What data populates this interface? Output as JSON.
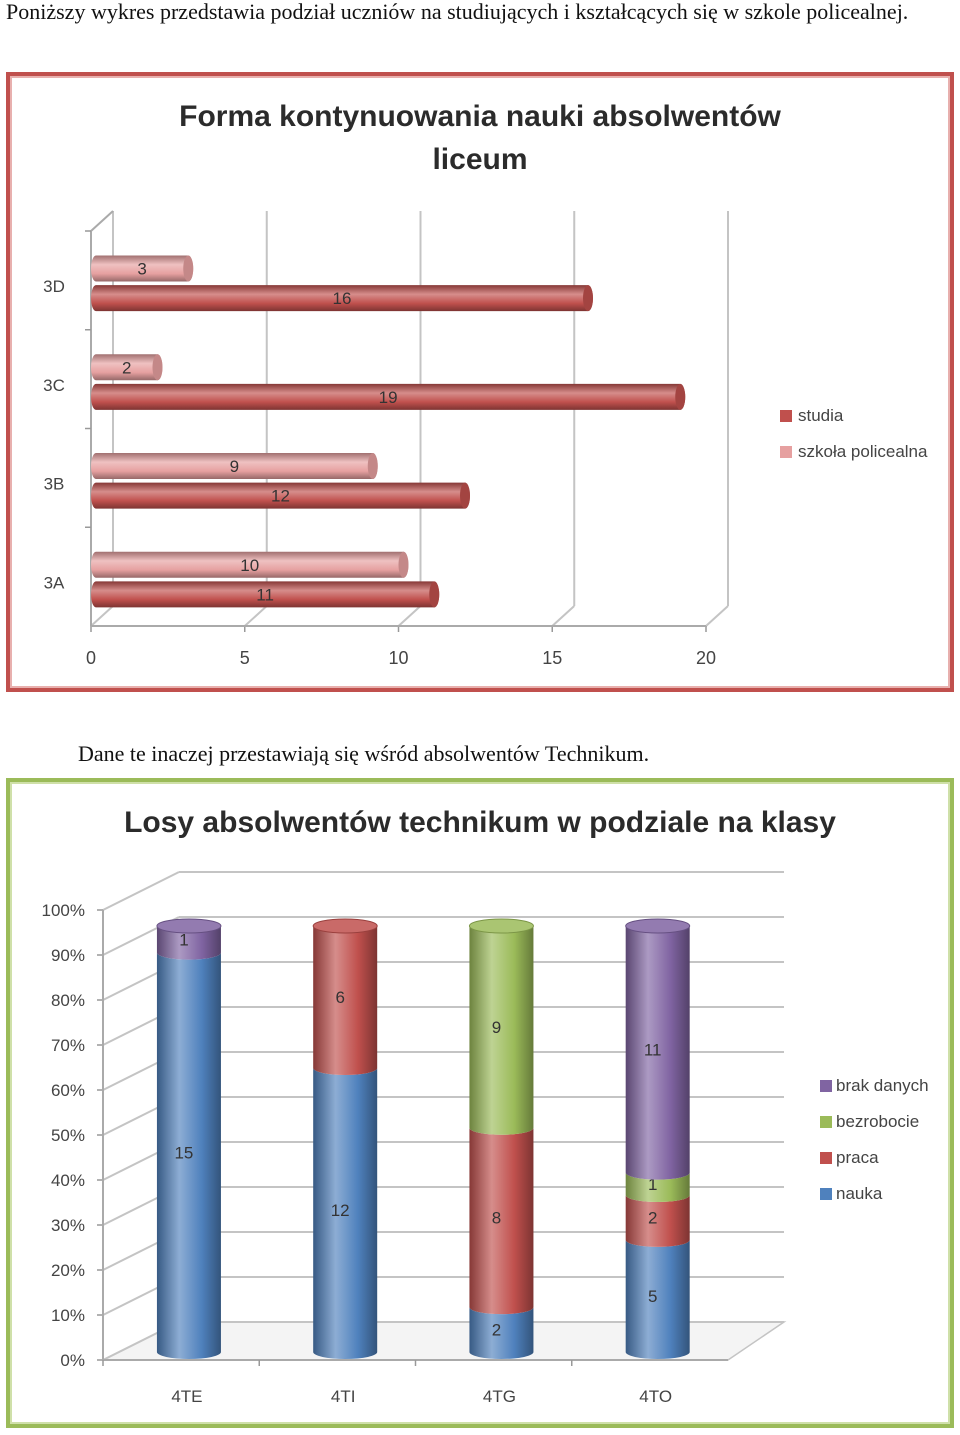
{
  "text": {
    "paragraph1": "Poniższy wykres przedstawia podział uczniów na studiujących i kształcących się w szkole policealnej.",
    "paragraph2": "Dane te inaczej przestawiają się wśród absolwentów Technikum."
  },
  "chart_data": [
    {
      "type": "bar",
      "orientation": "horizontal",
      "style": "3d-cylinder",
      "title": "Forma kontynuowania nauki absolwentów liceum",
      "categories": [
        "3A",
        "3B",
        "3C",
        "3D"
      ],
      "series": [
        {
          "name": "szkoła policealna",
          "values": [
            10,
            9,
            2,
            3
          ],
          "color": "#e6a0a0"
        },
        {
          "name": "studia",
          "values": [
            11,
            12,
            19,
            16
          ],
          "color": "#c0504d"
        }
      ],
      "x_ticks": [
        "0",
        "5",
        "10",
        "15",
        "20"
      ],
      "xlim": [
        0,
        20
      ],
      "grid": true,
      "legend": "right"
    },
    {
      "type": "bar",
      "orientation": "vertical",
      "stacking": "percent",
      "style": "3d-cylinder",
      "title": "Losy absolwentów technikum w podziale na klasy",
      "categories": [
        "4TE",
        "4TI",
        "4TG",
        "4TO"
      ],
      "series": [
        {
          "name": "nauka",
          "values": [
            15,
            12,
            2,
            5
          ],
          "color": "#4f81bd"
        },
        {
          "name": "praca",
          "values": [
            0,
            6,
            8,
            2
          ],
          "color": "#c0504d"
        },
        {
          "name": "bezrobocie",
          "values": [
            0,
            0,
            9,
            1
          ],
          "color": "#9bbb59"
        },
        {
          "name": "brak danych",
          "values": [
            1,
            0,
            0,
            11
          ],
          "color": "#8064a2"
        }
      ],
      "y_ticks": [
        "0%",
        "10%",
        "20%",
        "30%",
        "40%",
        "50%",
        "60%",
        "70%",
        "80%",
        "90%",
        "100%"
      ],
      "ylim": [
        0,
        100
      ],
      "grid": true,
      "legend": "right"
    }
  ]
}
